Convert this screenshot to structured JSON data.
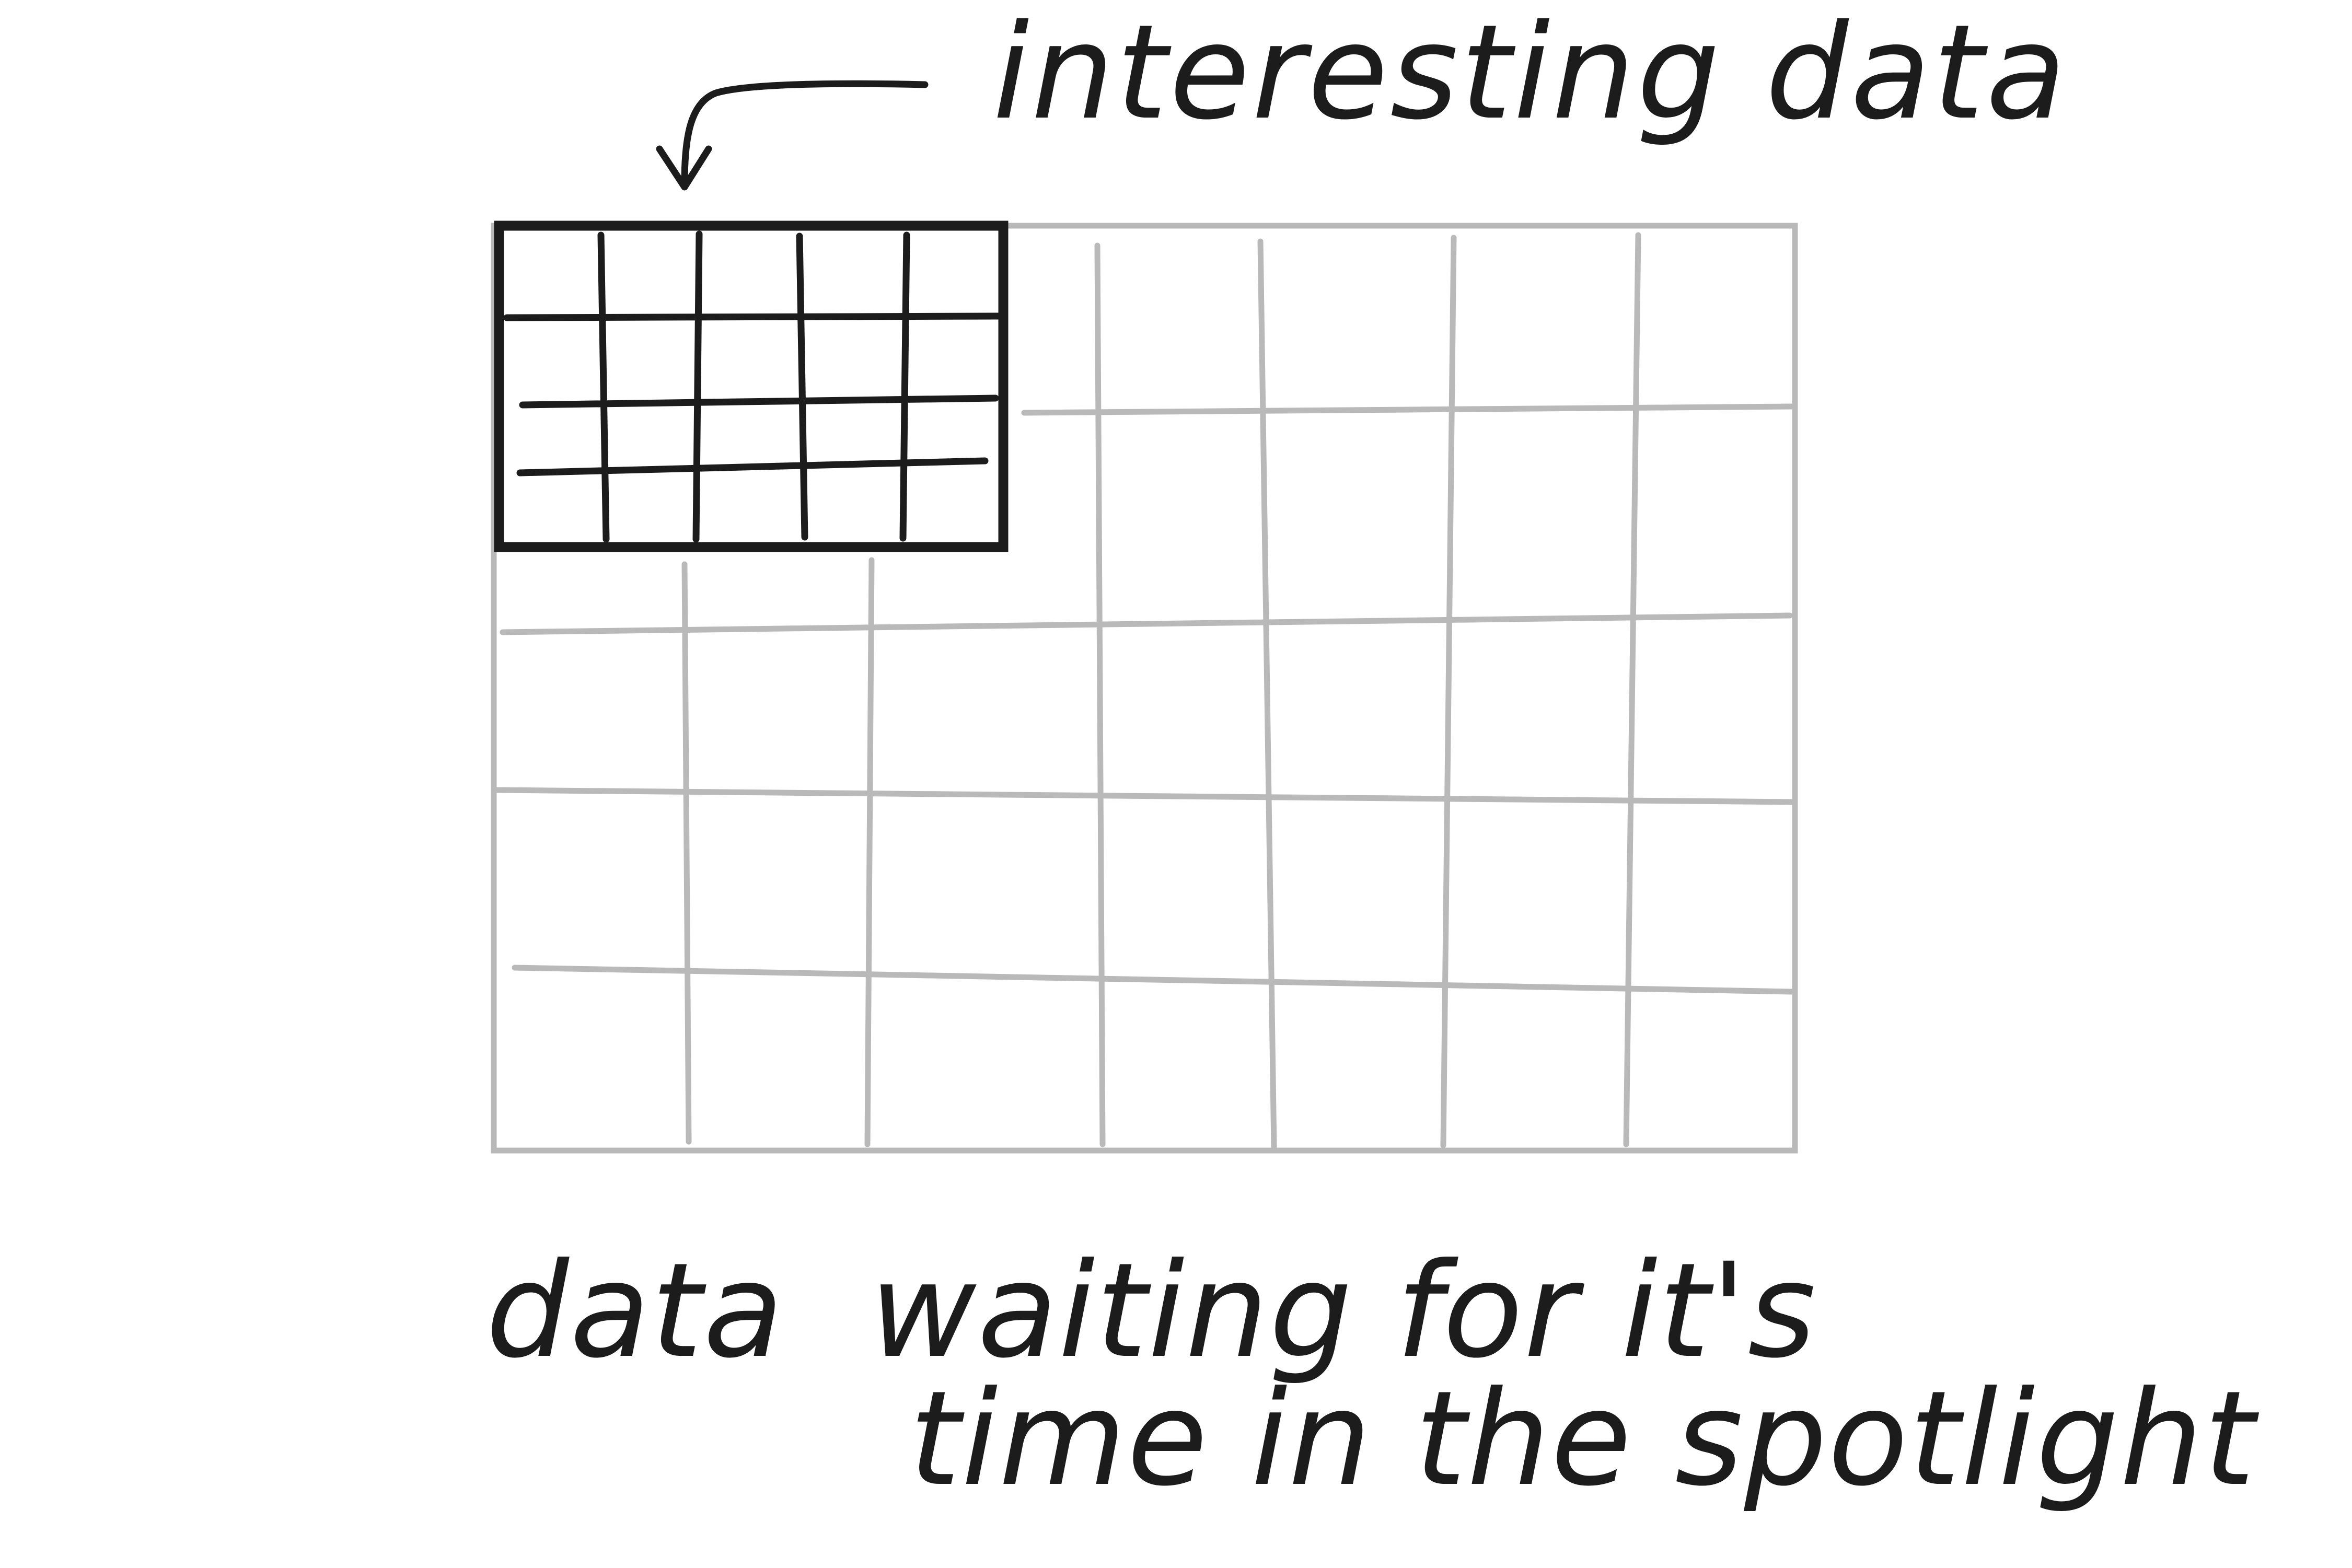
{
  "labels": {
    "top": "interesting data",
    "bottom_line1": "data  waiting for it's",
    "bottom_line2": "time in the spotlight"
  },
  "colors": {
    "ink": "#1c1c1c",
    "light_grid": "#b9b9b9",
    "background": "#ffffff"
  },
  "icons": {
    "pointer": "curved-arrow-down-icon"
  }
}
